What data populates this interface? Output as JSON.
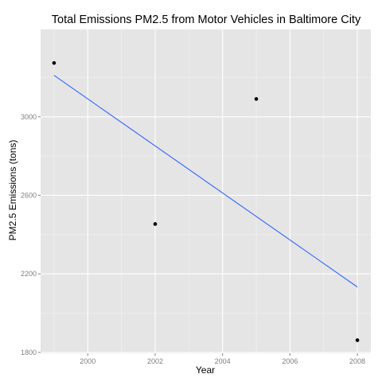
{
  "chart_data": {
    "type": "scatter",
    "title": "Total Emissions PM2.5 from Motor Vehicles in Baltimore City",
    "xlabel": "Year",
    "ylabel": "PM2.5 Emissions (tons)",
    "xlim": [
      1998.6,
      2008.4
    ],
    "ylim": [
      1795,
      3445
    ],
    "x_ticks": [
      2000,
      2002,
      2004,
      2006,
      2008
    ],
    "y_ticks": [
      1800,
      2200,
      2600,
      3000
    ],
    "grid": true,
    "series": [
      {
        "points": [
          {
            "x": 1999,
            "y": 3274
          },
          {
            "x": 2002,
            "y": 2454
          },
          {
            "x": 2005,
            "y": 3091
          },
          {
            "x": 2008,
            "y": 1862
          }
        ]
      }
    ],
    "trend_line": {
      "x": [
        1999,
        2008
      ],
      "y": [
        3211,
        2133
      ]
    },
    "colors": {
      "panel": "#e5e5e5",
      "grid_major": "#ffffff",
      "grid_minor": "#f2f2f2",
      "point": "#000000",
      "trend": "#3366ff"
    }
  }
}
